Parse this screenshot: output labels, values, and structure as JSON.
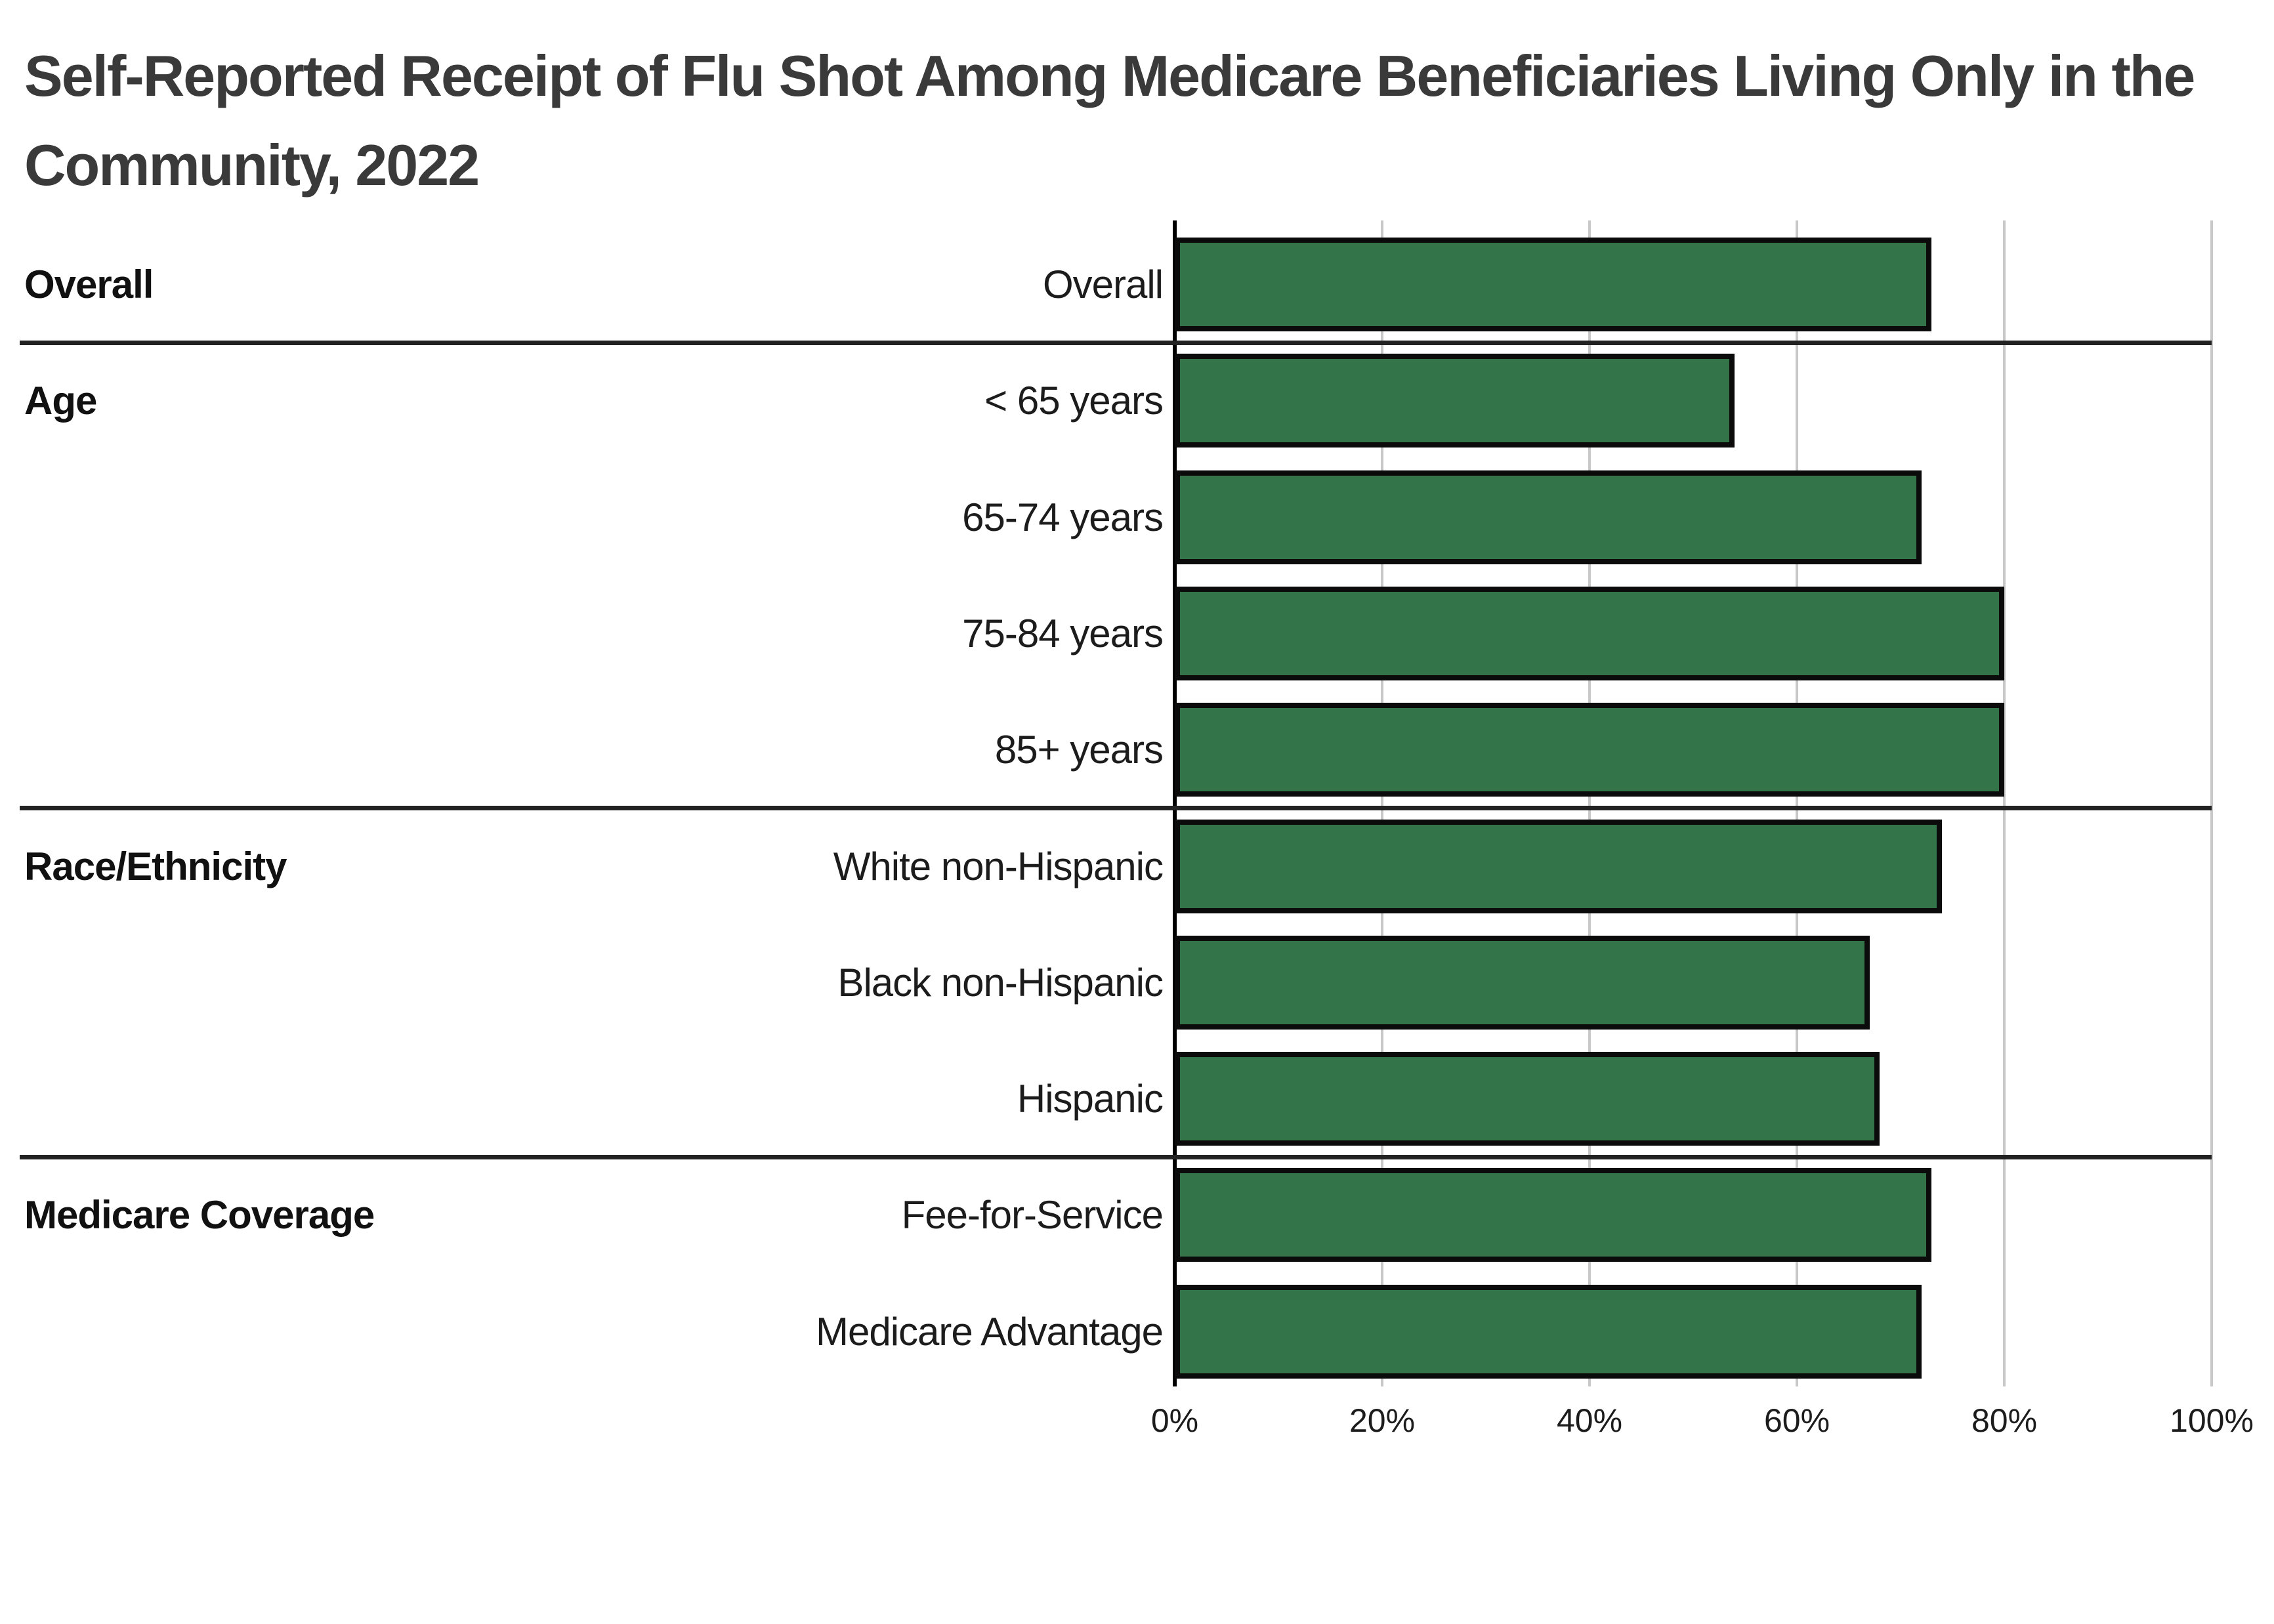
{
  "title": {
    "line1": "Self-Reported Receipt of Flu Shot Among Medicare Beneficiaries Living Only in the",
    "line2": "Community, 2022"
  },
  "chart_data": {
    "type": "bar",
    "orientation": "horizontal",
    "title": "Self-Reported Receipt of Flu Shot Among Medicare Beneficiaries Living Only in the Community, 2022",
    "unit": "%",
    "xlim": [
      0,
      100
    ],
    "x_ticks": [
      "0%",
      "20%",
      "40%",
      "60%",
      "80%",
      "100%"
    ],
    "grid": true,
    "legend": "none",
    "bar_color": "#337448",
    "bar_border_color": "#0b0b0b",
    "axis_color": "#000000",
    "gridline_color": "#c8c8c8",
    "separator_color": "#222222",
    "groups": [
      {
        "label": "Overall",
        "rows": [
          {
            "category": "Overall",
            "value": 73
          }
        ]
      },
      {
        "label": "Age",
        "rows": [
          {
            "category": "< 65 years",
            "value": 54
          },
          {
            "category": "65-74 years",
            "value": 72
          },
          {
            "category": "75-84 years",
            "value": 80
          },
          {
            "category": "85+ years",
            "value": 80
          }
        ]
      },
      {
        "label": "Race/Ethnicity",
        "rows": [
          {
            "category": "White non-Hispanic",
            "value": 74
          },
          {
            "category": "Black non-Hispanic",
            "value": 67
          },
          {
            "category": "Hispanic",
            "value": 68
          }
        ]
      },
      {
        "label": "Medicare Coverage",
        "rows": [
          {
            "category": "Fee-for-Service",
            "value": 73
          },
          {
            "category": "Medicare Advantage",
            "value": 72
          }
        ]
      }
    ]
  }
}
